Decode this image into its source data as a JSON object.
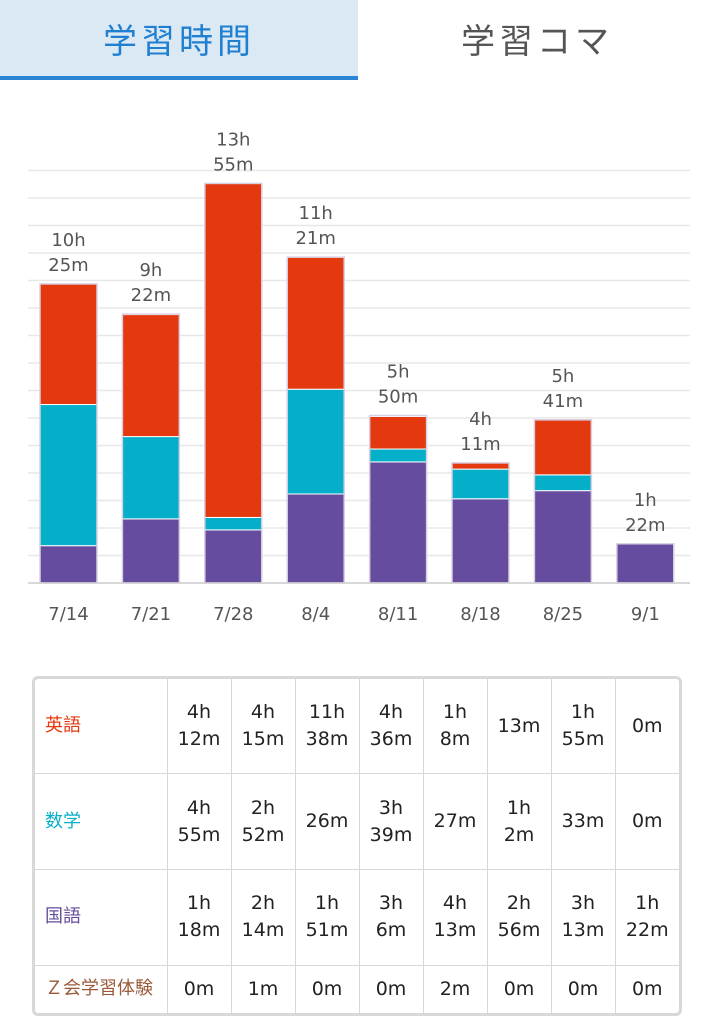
{
  "tabs": [
    {
      "label": "学習時間",
      "active": true
    },
    {
      "label": "学習コマ",
      "active": false
    }
  ],
  "chart_data": {
    "type": "bar",
    "stacked": true,
    "categories": [
      "7/14",
      "7/21",
      "7/28",
      "8/4",
      "8/11",
      "8/18",
      "8/25",
      "9/1"
    ],
    "series": [
      {
        "name": "国語",
        "color": "#654c9e",
        "values": [
          78,
          134,
          111,
          186,
          253,
          176,
          193,
          82
        ]
      },
      {
        "name": "数学",
        "color": "#06afc9",
        "values": [
          295,
          172,
          26,
          219,
          27,
          62,
          33,
          0
        ]
      },
      {
        "name": "英語",
        "color": "#e4380f",
        "values": [
          252,
          255,
          698,
          276,
          68,
          13,
          115,
          0
        ]
      },
      {
        "name": "Ｚ会学習体験",
        "color": "#9a6a3a",
        "values": [
          0,
          1,
          0,
          0,
          2,
          0,
          0,
          0
        ]
      }
    ],
    "totals_label": [
      "10h\n25m",
      "9h\n22m",
      "13h\n55m",
      "11h\n21m",
      "5h\n50m",
      "4h\n11m",
      "5h\n41m",
      "1h\n22m"
    ],
    "grid": true
  },
  "table": {
    "rows": [
      {
        "label": "英語",
        "color": "#e4380f",
        "cells": [
          "4h\n12m",
          "4h\n15m",
          "11h\n38m",
          "4h\n36m",
          "1h\n8m",
          "13m",
          "1h\n55m",
          "0m"
        ]
      },
      {
        "label": "数学",
        "color": "#06afc9",
        "cells": [
          "4h\n55m",
          "2h\n52m",
          "26m",
          "3h\n39m",
          "27m",
          "1h\n2m",
          "33m",
          "0m"
        ]
      },
      {
        "label": "国語",
        "color": "#654c9e",
        "cells": [
          "1h\n18m",
          "2h\n14m",
          "1h\n51m",
          "3h\n6m",
          "4h\n13m",
          "2h\n56m",
          "3h\n13m",
          "1h\n22m"
        ]
      },
      {
        "label": "Ｚ会学習体験",
        "color": "#9a5a3a",
        "cells": [
          "0m",
          "1m",
          "0m",
          "0m",
          "2m",
          "0m",
          "0m",
          "0m"
        ]
      }
    ]
  }
}
